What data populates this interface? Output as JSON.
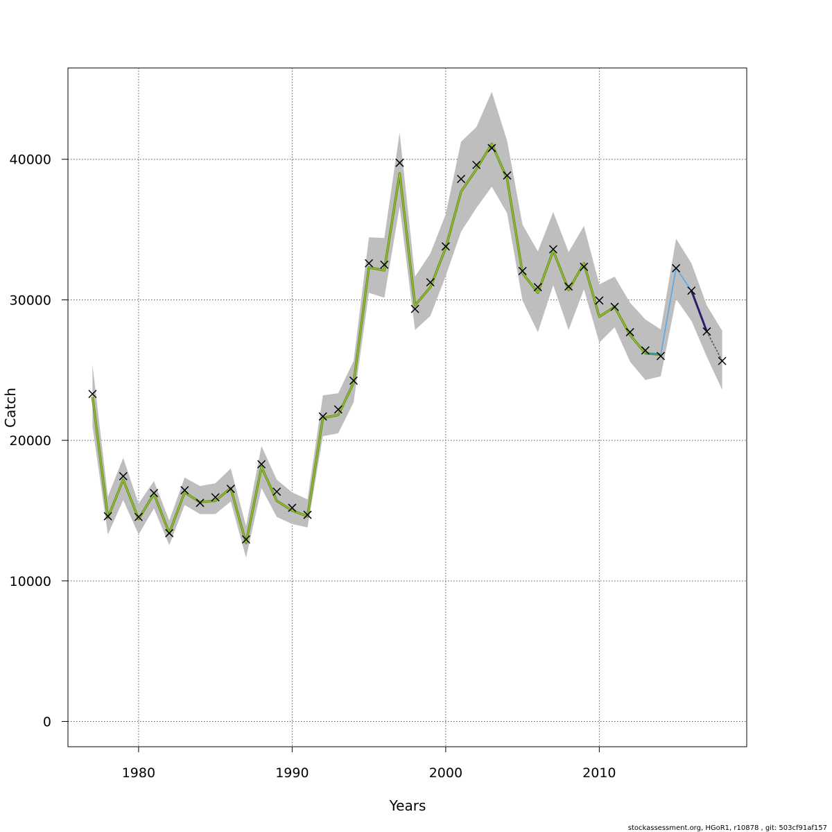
{
  "chart_data": {
    "type": "line",
    "xlabel": "Years",
    "ylabel": "Catch",
    "xlim": [
      1975.4,
      2019.6
    ],
    "ylim": [
      -1800,
      46500
    ],
    "x_ticks": [
      1980,
      1990,
      2000,
      2010
    ],
    "y_ticks": [
      0,
      10000,
      20000,
      30000,
      40000
    ],
    "grid": true,
    "colors": {
      "band": "#bebebe",
      "model_line": "#6b8e23",
      "model_line_inner": "#9acd32",
      "observations": "#000000",
      "segment_a": "#1fa0b4",
      "segment_b": "#56a8e8",
      "segment_c": "#2e1a6e",
      "segment_d": "#555555"
    },
    "observed": {
      "x": [
        1977,
        1978,
        1979,
        1980,
        1981,
        1982,
        1983,
        1984,
        1985,
        1986,
        1987,
        1988,
        1989,
        1990,
        1991,
        1992,
        1993,
        1994,
        1995,
        1996,
        1997,
        1998,
        1999,
        2000,
        2001,
        2002,
        2003,
        2004,
        2005,
        2006,
        2007,
        2008,
        2009,
        2010,
        2011,
        2012,
        2013,
        2014,
        2015,
        2016,
        2017,
        2018
      ],
      "y": [
        23300,
        14600,
        17450,
        14550,
        16250,
        13400,
        16450,
        15550,
        15950,
        16550,
        12950,
        18300,
        16350,
        15200,
        14700,
        21700,
        22200,
        24250,
        32600,
        32500,
        39750,
        29350,
        31250,
        33800,
        38600,
        39600,
        40800,
        38850,
        32050,
        30900,
        33600,
        30950,
        32350,
        29950,
        29500,
        27700,
        26400,
        26000,
        32250,
        30650,
        27750,
        25650
      ]
    },
    "fitted": {
      "x": [
        1977,
        1978,
        1979,
        1980,
        1981,
        1982,
        1983,
        1984,
        1985,
        1986,
        1987,
        1988,
        1989,
        1990,
        1991,
        1992,
        1993,
        1994,
        1995,
        1996,
        1997,
        1998,
        1999,
        2000,
        2001,
        2002,
        2003,
        2004,
        2005,
        2006,
        2007,
        2008,
        2009,
        2010,
        2011,
        2012,
        2013,
        2014
      ],
      "y": [
        23100,
        14500,
        17200,
        14400,
        16200,
        13400,
        16300,
        15600,
        15700,
        16600,
        12700,
        18100,
        15700,
        15000,
        14600,
        21600,
        21800,
        24100,
        32300,
        32100,
        39000,
        29600,
        30900,
        33700,
        37700,
        39300,
        41100,
        38600,
        31900,
        30500,
        33500,
        30700,
        32600,
        28800,
        29500,
        27500,
        26200,
        26100
      ]
    },
    "band": {
      "x": [
        1977,
        1978,
        1979,
        1980,
        1981,
        1982,
        1983,
        1984,
        1985,
        1986,
        1987,
        1988,
        1989,
        1990,
        1991,
        1992,
        1993,
        1994,
        1995,
        1996,
        1997,
        1998,
        1999,
        2000,
        2001,
        2002,
        2003,
        2004,
        2005,
        2006,
        2007,
        2008,
        2009,
        2010,
        2011,
        2012,
        2013,
        2014,
        2015,
        2016,
        2017,
        2018
      ],
      "upper": [
        25400,
        16000,
        18750,
        15500,
        17100,
        14300,
        17350,
        16750,
        16950,
        18000,
        13900,
        19600,
        17200,
        16300,
        15800,
        23200,
        23350,
        25650,
        34450,
        34400,
        41900,
        31650,
        33300,
        36100,
        41250,
        42300,
        44800,
        41300,
        35350,
        33450,
        36250,
        33400,
        35250,
        31100,
        31650,
        29800,
        28600,
        27900,
        34350,
        32600,
        29600,
        27800
      ],
      "lower": [
        21000,
        13300,
        15750,
        13300,
        15150,
        12550,
        15400,
        14750,
        14750,
        15650,
        11650,
        16600,
        14550,
        14050,
        13800,
        20300,
        20500,
        22700,
        30500,
        30150,
        36650,
        27850,
        28850,
        31700,
        34850,
        36550,
        38050,
        36150,
        29950,
        27700,
        31050,
        27850,
        30750,
        26950,
        28050,
        25600,
        24300,
        24550,
        30050,
        28500,
        25950,
        23600
      ]
    },
    "tail_segments": [
      {
        "x": [
          2013,
          2014
        ],
        "y": [
          26200,
          26100
        ],
        "color_key": "segment_a"
      },
      {
        "x": [
          2014,
          2015,
          2016
        ],
        "y": [
          26100,
          32250,
          30650
        ],
        "color_key": "segment_b"
      },
      {
        "x": [
          2016,
          2017
        ],
        "y": [
          30650,
          27750
        ],
        "color_key": "segment_c"
      },
      {
        "x": [
          2017,
          2018
        ],
        "y": [
          27750,
          25650
        ],
        "color_key": "segment_d"
      }
    ]
  },
  "footer": {
    "text": "stockassessment.org, HGoR1, r10878 , git: 503cf91af157"
  }
}
